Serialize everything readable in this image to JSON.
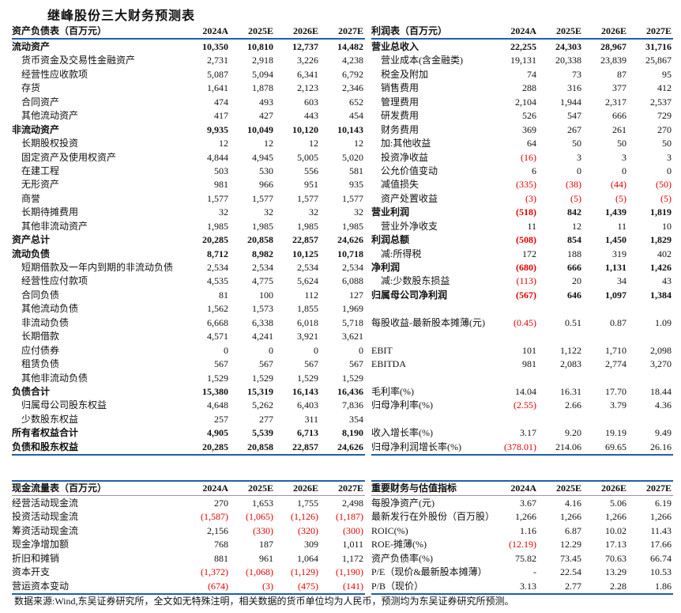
{
  "title": "继峰股份三大财务预测表",
  "colors": {
    "accent_line": "#1f5fb0",
    "negative": "#e00000"
  },
  "years": [
    "2024A",
    "2025E",
    "2026E",
    "2027E"
  ],
  "tables": {
    "bs": {
      "header": "资产负债表（百万元）",
      "rows": [
        {
          "label": "流动资产",
          "bold": true,
          "values": [
            "10,350",
            "10,810",
            "12,737",
            "14,482"
          ]
        },
        {
          "label": "货币资金及交易性金融资产",
          "indent": true,
          "values": [
            "2,731",
            "2,918",
            "3,226",
            "4,238"
          ]
        },
        {
          "label": "经营性应收款项",
          "indent": true,
          "values": [
            "5,087",
            "5,094",
            "6,341",
            "6,792"
          ]
        },
        {
          "label": "存货",
          "indent": true,
          "values": [
            "1,641",
            "1,878",
            "2,123",
            "2,346"
          ]
        },
        {
          "label": "合同资产",
          "indent": true,
          "values": [
            "474",
            "493",
            "603",
            "652"
          ]
        },
        {
          "label": "其他流动资产",
          "indent": true,
          "values": [
            "417",
            "427",
            "443",
            "454"
          ]
        },
        {
          "label": "非流动资产",
          "bold": true,
          "values": [
            "9,935",
            "10,049",
            "10,120",
            "10,143"
          ]
        },
        {
          "label": "长期股权投资",
          "indent": true,
          "values": [
            "12",
            "12",
            "12",
            "12"
          ]
        },
        {
          "label": "固定资产及使用权资产",
          "indent": true,
          "values": [
            "4,844",
            "4,945",
            "5,005",
            "5,020"
          ]
        },
        {
          "label": "在建工程",
          "indent": true,
          "values": [
            "503",
            "530",
            "556",
            "581"
          ]
        },
        {
          "label": "无形资产",
          "indent": true,
          "values": [
            "981",
            "966",
            "951",
            "935"
          ]
        },
        {
          "label": "商誉",
          "indent": true,
          "values": [
            "1,577",
            "1,577",
            "1,577",
            "1,577"
          ]
        },
        {
          "label": "长期待摊费用",
          "indent": true,
          "values": [
            "32",
            "32",
            "32",
            "32"
          ]
        },
        {
          "label": "其他非流动资产",
          "indent": true,
          "values": [
            "1,985",
            "1,985",
            "1,985",
            "1,985"
          ]
        },
        {
          "label": "资产总计",
          "bold": true,
          "values": [
            "20,285",
            "20,858",
            "22,857",
            "24,626"
          ]
        },
        {
          "label": "流动负债",
          "bold": true,
          "values": [
            "8,712",
            "8,982",
            "10,125",
            "10,718"
          ]
        },
        {
          "label": "短期借款及一年内到期的非流动负债",
          "indent": true,
          "values": [
            "2,534",
            "2,534",
            "2,534",
            "2,534"
          ]
        },
        {
          "label": "经营性应付款项",
          "indent": true,
          "values": [
            "4,535",
            "4,775",
            "5,624",
            "6,088"
          ]
        },
        {
          "label": "合同负债",
          "indent": true,
          "values": [
            "81",
            "100",
            "112",
            "127"
          ]
        },
        {
          "label": "其他流动负债",
          "indent": true,
          "values": [
            "1,562",
            "1,573",
            "1,855",
            "1,969"
          ]
        },
        {
          "label": "非流动负债",
          "indent": true,
          "values": [
            "6,668",
            "6,338",
            "6,018",
            "5,718"
          ]
        },
        {
          "label": "长期借款",
          "indent": true,
          "values": [
            "4,571",
            "4,241",
            "3,921",
            "3,621"
          ]
        },
        {
          "label": "应付债券",
          "indent": true,
          "values": [
            "0",
            "0",
            "0",
            "0"
          ]
        },
        {
          "label": "租赁负债",
          "indent": true,
          "values": [
            "567",
            "567",
            "567",
            "567"
          ]
        },
        {
          "label": "其他非流动负债",
          "indent": true,
          "values": [
            "1,529",
            "1,529",
            "1,529",
            "1,529"
          ]
        },
        {
          "label": "负债合计",
          "bold": true,
          "values": [
            "15,380",
            "15,319",
            "16,143",
            "16,436"
          ]
        },
        {
          "label": "归属母公司股东权益",
          "indent": true,
          "values": [
            "4,648",
            "5,262",
            "6,403",
            "7,836"
          ]
        },
        {
          "label": "少数股东权益",
          "indent": true,
          "values": [
            "257",
            "277",
            "311",
            "354"
          ]
        },
        {
          "label": "所有者权益合计",
          "bold": true,
          "values": [
            "4,905",
            "5,539",
            "6,713",
            "8,190"
          ]
        },
        {
          "label": "负债和股东权益",
          "bold": true,
          "values": [
            "20,285",
            "20,858",
            "22,857",
            "24,626"
          ]
        }
      ]
    },
    "is": {
      "header": "利润表（百万元）",
      "rows": [
        {
          "label": "营业总收入",
          "bold": true,
          "values": [
            "22,255",
            "24,303",
            "28,967",
            "31,716"
          ]
        },
        {
          "label": "营业成本(含金融类)",
          "indent": true,
          "values": [
            "19,131",
            "20,338",
            "23,839",
            "25,867"
          ]
        },
        {
          "label": "税金及附加",
          "indent": true,
          "values": [
            "74",
            "73",
            "87",
            "95"
          ]
        },
        {
          "label": "销售费用",
          "indent": true,
          "values": [
            "288",
            "316",
            "377",
            "412"
          ]
        },
        {
          "label": "管理费用",
          "indent": true,
          "values": [
            "2,104",
            "1,944",
            "2,317",
            "2,537"
          ]
        },
        {
          "label": "研发费用",
          "indent": true,
          "values": [
            "526",
            "547",
            "666",
            "729"
          ]
        },
        {
          "label": "财务费用",
          "indent": true,
          "values": [
            "369",
            "267",
            "261",
            "270"
          ]
        },
        {
          "label": "加:其他收益",
          "indent": true,
          "values": [
            "64",
            "50",
            "50",
            "50"
          ]
        },
        {
          "label": "投资净收益",
          "indent": true,
          "values": [
            "(16)",
            "3",
            "3",
            "3"
          ]
        },
        {
          "label": "公允价值变动",
          "indent": true,
          "values": [
            "6",
            "0",
            "0",
            "0"
          ]
        },
        {
          "label": "减值损失",
          "indent": true,
          "values": [
            "(335)",
            "(38)",
            "(44)",
            "(50)"
          ]
        },
        {
          "label": "资产处置收益",
          "indent": true,
          "values": [
            "(3)",
            "(5)",
            "(5)",
            "(5)"
          ]
        },
        {
          "label": "营业利润",
          "bold": true,
          "values": [
            "(518)",
            "842",
            "1,439",
            "1,819"
          ]
        },
        {
          "label": "营业外净收支",
          "indent": true,
          "values": [
            "11",
            "12",
            "11",
            "10"
          ]
        },
        {
          "label": "利润总额",
          "bold": true,
          "values": [
            "(508)",
            "854",
            "1,450",
            "1,829"
          ]
        },
        {
          "label": "减:所得税",
          "indent": true,
          "values": [
            "172",
            "188",
            "319",
            "402"
          ]
        },
        {
          "label": "净利润",
          "bold": true,
          "values": [
            "(680)",
            "666",
            "1,131",
            "1,426"
          ]
        },
        {
          "label": "减:少数股东损益",
          "indent": true,
          "values": [
            "(113)",
            "20",
            "34",
            "43"
          ]
        },
        {
          "label": "归属母公司净利润",
          "bold": true,
          "values": [
            "(567)",
            "646",
            "1,097",
            "1,384"
          ]
        },
        {
          "label": "",
          "values": [
            "",
            "",
            "",
            ""
          ]
        },
        {
          "label": "每股收益-最新股本摊薄(元)",
          "values": [
            "(0.45)",
            "0.51",
            "0.87",
            "1.09"
          ]
        },
        {
          "label": "",
          "values": [
            "",
            "",
            "",
            ""
          ]
        },
        {
          "label": "EBIT",
          "values": [
            "101",
            "1,122",
            "1,710",
            "2,098"
          ]
        },
        {
          "label": "EBITDA",
          "values": [
            "981",
            "2,083",
            "2,774",
            "3,270"
          ]
        },
        {
          "label": "",
          "values": [
            "",
            "",
            "",
            ""
          ]
        },
        {
          "label": "毛利率(%)",
          "values": [
            "14.04",
            "16.31",
            "17.70",
            "18.44"
          ]
        },
        {
          "label": "归母净利率(%)",
          "values": [
            "(2.55)",
            "2.66",
            "3.79",
            "4.36"
          ]
        },
        {
          "label": "",
          "values": [
            "",
            "",
            "",
            ""
          ]
        },
        {
          "label": "收入增长率(%)",
          "values": [
            "3.17",
            "9.20",
            "19.19",
            "9.49"
          ]
        },
        {
          "label": "归母净利润增长率(%)",
          "values": [
            "(378.01)",
            "214.06",
            "69.65",
            "26.16"
          ]
        }
      ]
    },
    "cf": {
      "header": "现金流量表（百万元）",
      "rows": [
        {
          "label": "经营活动现金流",
          "values": [
            "270",
            "1,653",
            "1,755",
            "2,498"
          ]
        },
        {
          "label": "投资活动现金流",
          "values": [
            "(1,587)",
            "(1,065)",
            "(1,126)",
            "(1,187)"
          ]
        },
        {
          "label": "筹资活动现金流",
          "values": [
            "2,156",
            "(330)",
            "(320)",
            "(300)"
          ]
        },
        {
          "label": "现金净增加额",
          "values": [
            "768",
            "187",
            "309",
            "1,011"
          ]
        },
        {
          "label": "折旧和摊销",
          "values": [
            "881",
            "961",
            "1,064",
            "1,172"
          ]
        },
        {
          "label": "资本开支",
          "values": [
            "(1,372)",
            "(1,068)",
            "(1,129)",
            "(1,190)"
          ]
        },
        {
          "label": "营运资本变动",
          "values": [
            "(674)",
            "(3)",
            "(475)",
            "(141)"
          ]
        }
      ]
    },
    "kr": {
      "header": "重要财务与估值指标",
      "rows": [
        {
          "label": "每股净资产(元)",
          "values": [
            "3.67",
            "4.16",
            "5.06",
            "6.19"
          ]
        },
        {
          "label": "最新发行在外股份（百万股）",
          "values": [
            "1,266",
            "1,266",
            "1,266",
            "1,266"
          ]
        },
        {
          "label": "ROIC(%)",
          "values": [
            "1.16",
            "6.87",
            "10.02",
            "11.43"
          ]
        },
        {
          "label": "ROE-摊薄(%)",
          "values": [
            "(12.19)",
            "12.29",
            "17.13",
            "17.66"
          ]
        },
        {
          "label": "资产负债率(%)",
          "values": [
            "75.82",
            "73.45",
            "70.63",
            "66.74"
          ]
        },
        {
          "label": "P/E（现价&最新股本摊薄）",
          "values": [
            "-",
            "22.54",
            "13.29",
            "10.53"
          ]
        },
        {
          "label": "P/B（现价）",
          "values": [
            "3.13",
            "2.77",
            "2.28",
            "1.86"
          ]
        }
      ]
    }
  },
  "footnote": "数据来源:Wind,东吴证券研究所，全文如无特殊注明，相关数据的货币单位均为人民币，预测均为东吴证券研究所预测。"
}
